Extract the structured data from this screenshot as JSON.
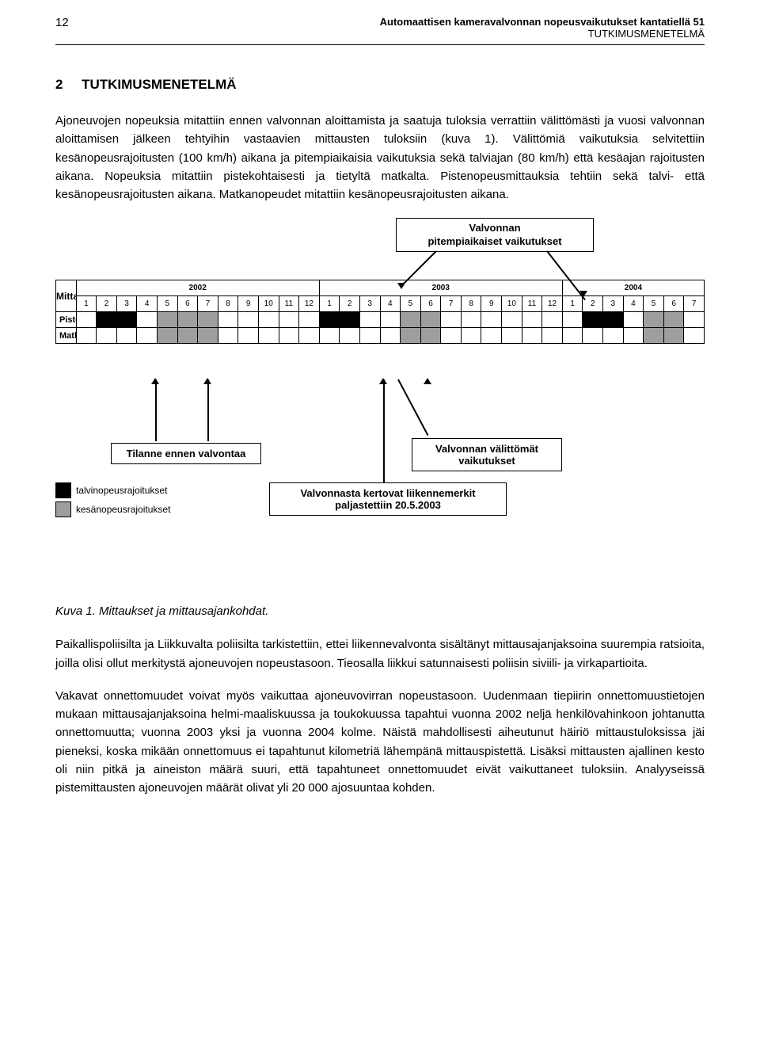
{
  "header": {
    "page_number": "12",
    "title": "Automaattisen kameravalvonnan nopeusvaikutukset kantatiellä 51",
    "subtitle": "TUTKIMUSMENETELMÄ"
  },
  "section": {
    "number": "2",
    "title": "TUTKIMUSMENETELMÄ"
  },
  "paragraphs": {
    "p1": "Ajoneuvojen nopeuksia mitattiin ennen valvonnan aloittamista ja saatuja tuloksia verrattiin välittömästi ja vuosi valvonnan aloittamisen jälkeen tehtyihin vastaavien mittausten tuloksiin (kuva 1). Välittömiä vaikutuksia selvitettiin kesänopeusrajoitusten (100 km/h) aikana ja pitempiaikaisia vaikutuksia sekä talviajan (80 km/h) että kesäajan rajoitusten aikana. Nopeuksia mitattiin pistekohtaisesti ja tietyltä matkalta. Pistenopeusmittauksia tehtiin sekä talvi- että kesänopeusrajoitusten aikana. Matkanopeudet mitattiin kesänopeusrajoitusten aikana.",
    "p2": "Paikallispoliisilta ja Liikkuvalta poliisilta tarkistettiin, ettei liikennevalvonta sisältänyt mittausajanjaksoina suurempia ratsioita, joilla olisi ollut merkitystä ajoneuvojen nopeustasoon. Tieosalla liikkui satunnaisesti poliisin siviili- ja virkapartioita.",
    "p3": "Vakavat onnettomuudet voivat myös vaikuttaa ajoneuvovirran nopeustasoon. Uudenmaan tiepiirin onnettomuustietojen mukaan mittausajanjaksoina helmi-maaliskuussa ja toukokuussa tapahtui vuonna 2002 neljä henkilövahinkoon johtanutta onnettomuutta; vuonna 2003 yksi ja vuonna 2004 kolme. Näistä mahdollisesti aiheutunut häiriö mittaustuloksissa jäi pieneksi, koska mikään onnettomuus ei tapahtunut kilometriä lähempänä mittauspistettä. Lisäksi mittausten ajallinen kesto oli niin pitkä ja aineiston määrä suuri, että tapahtuneet onnettomuudet eivät vaikuttaneet tuloksiin. Analyyseissä pistemittausten ajoneuvojen määrät olivat yli 20 000 ajosuuntaa kohden."
  },
  "caption": "Kuva 1. Mittaukset ja mittausajankohdat.",
  "callouts": {
    "pitempi": "Valvonnan\npitempiaikaiset vaikutukset",
    "tilanne": "Tilanne ennen valvontaa",
    "valittomat": "Valvonnan välittömät\nvaikutukset",
    "kertovat": "Valvonnasta kertovat liikennemerkit\npaljastettiin 20.5.2003"
  },
  "legend": {
    "talvi": "talvinopeusrajoitukset",
    "kesa": "kesänopeusrajoitukset"
  },
  "chart": {
    "mittaus_label": "Mittaus",
    "row1": "Pistenopeus",
    "row2": "Matkanopeus",
    "years": [
      "2002",
      "2003",
      "2004"
    ],
    "months_2002": [
      "1",
      "2",
      "3",
      "4",
      "5",
      "6",
      "7",
      "8",
      "9",
      "10",
      "11",
      "12"
    ],
    "months_2003": [
      "1",
      "2",
      "3",
      "4",
      "5",
      "6",
      "7",
      "8",
      "9",
      "10",
      "11",
      "12"
    ],
    "months_2004": [
      "1",
      "2",
      "3",
      "4",
      "5",
      "6",
      "7"
    ],
    "colors": {
      "black": "#000000",
      "gray": "#9e9e9e",
      "white": "#ffffff"
    },
    "pistenopeus_fill": [
      "w",
      "b",
      "b",
      "w",
      "g",
      "g",
      "g",
      "w",
      "w",
      "w",
      "w",
      "w",
      "b",
      "b",
      "w",
      "w",
      "g",
      "g",
      "w",
      "w",
      "w",
      "w",
      "w",
      "w",
      "w",
      "b",
      "b",
      "w",
      "g",
      "g",
      "w"
    ],
    "matkanopeus_fill": [
      "w",
      "w",
      "w",
      "w",
      "g",
      "g",
      "g",
      "w",
      "w",
      "w",
      "w",
      "w",
      "w",
      "w",
      "w",
      "w",
      "g",
      "g",
      "w",
      "w",
      "w",
      "w",
      "w",
      "w",
      "w",
      "w",
      "w",
      "w",
      "g",
      "g",
      "w"
    ]
  }
}
